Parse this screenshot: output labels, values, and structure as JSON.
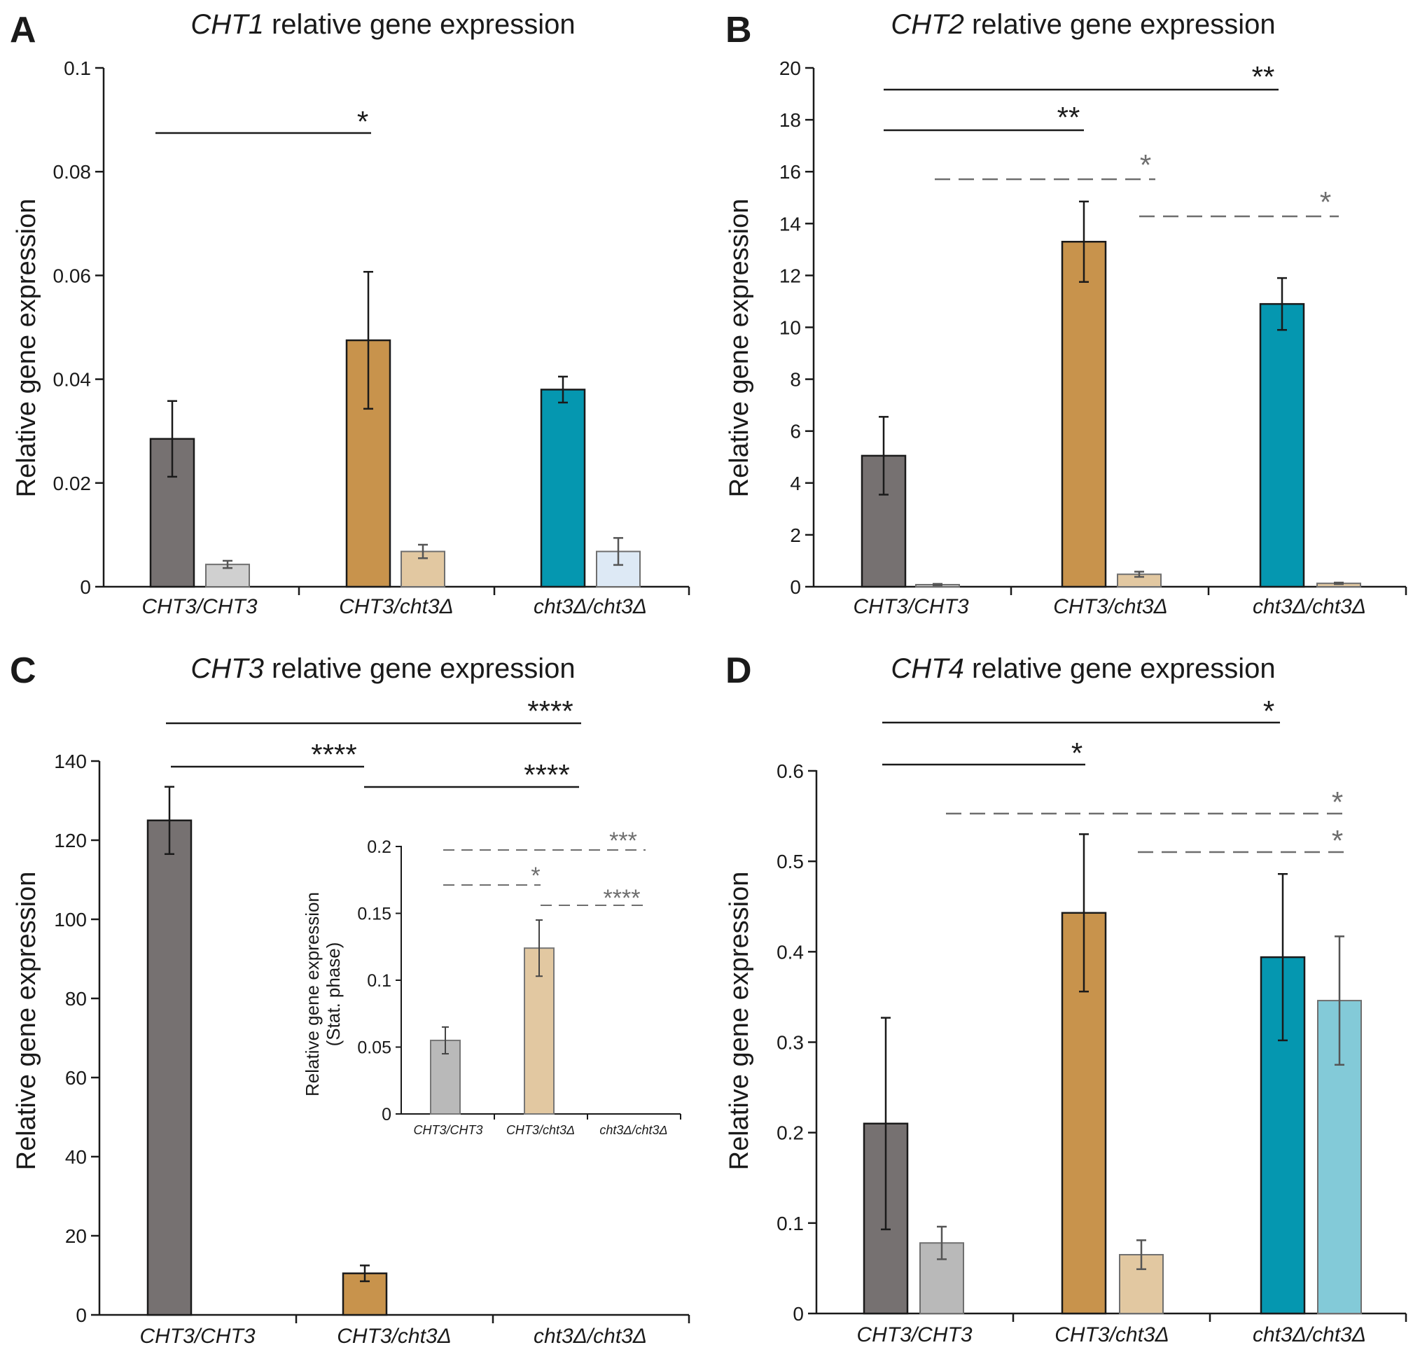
{
  "figure": {
    "panel_letters": [
      "A",
      "B",
      "C",
      "D"
    ],
    "colors": {
      "wt_dark": "#767171",
      "wt_light": "#d0d0d0",
      "wt_light_D": "#b9b9b9",
      "het_dark": "#c8934c",
      "het_light": "#e2c8a1",
      "hom_dark": "#0597b0",
      "hom_light_A": "#dde9f5",
      "hom_light_D": "#83cad8",
      "inset_wt": "#b9b9b9",
      "inset_het": "#e2c8a1"
    }
  },
  "chart_data": [
    {
      "panel": "A",
      "type": "bar",
      "title": "relative gene expression",
      "gene": "CHT1",
      "ylabel": "Relative gene expression",
      "categories": [
        "CHT3/CHT3",
        "CHT3/cht3Δ",
        "cht3Δ/cht3Δ"
      ],
      "ylim": [
        0,
        0.1
      ],
      "yticks": [
        0,
        0.02,
        0.04,
        0.06,
        0.08,
        0.1
      ],
      "ytick_labels": [
        "0",
        "0.02",
        "0.04",
        "0.06",
        "0.08",
        "0.1"
      ],
      "series": [
        {
          "name": "dark",
          "values": [
            0.0285,
            0.0475,
            0.038
          ],
          "errors": [
            0.0073,
            0.0132,
            0.0025
          ]
        },
        {
          "name": "light",
          "values": [
            0.0043,
            0.0068,
            0.0068
          ],
          "errors": [
            0.0007,
            0.0013,
            0.0026
          ]
        }
      ],
      "significance": [
        {
          "label": "*",
          "style": "solid"
        }
      ]
    },
    {
      "panel": "B",
      "type": "bar",
      "title": "relative gene expression",
      "gene": "CHT2",
      "ylabel": "Relative gene expression",
      "categories": [
        "CHT3/CHT3",
        "CHT3/cht3Δ",
        "cht3Δ/cht3Δ"
      ],
      "ylim": [
        0,
        20
      ],
      "yticks": [
        0,
        2,
        4,
        6,
        8,
        10,
        12,
        14,
        16,
        18,
        20
      ],
      "ytick_labels": [
        "0",
        "2",
        "4",
        "6",
        "8",
        "10",
        "12",
        "14",
        "16",
        "18",
        "20"
      ],
      "series": [
        {
          "name": "dark",
          "values": [
            5.05,
            13.3,
            10.9
          ],
          "errors": [
            1.5,
            1.55,
            1.0
          ]
        },
        {
          "name": "light",
          "values": [
            0.08,
            0.48,
            0.13
          ],
          "errors": [
            0.03,
            0.1,
            0.03
          ]
        }
      ],
      "significance": [
        {
          "label": "**",
          "style": "solid"
        },
        {
          "label": "**",
          "style": "solid"
        },
        {
          "label": "*",
          "style": "dashed"
        },
        {
          "label": "*",
          "style": "dashed"
        }
      ]
    },
    {
      "panel": "C",
      "type": "bar",
      "title": "relative gene expression",
      "gene": "CHT3",
      "ylabel": "Relative gene expression",
      "categories": [
        "CHT3/CHT3",
        "CHT3/cht3Δ",
        "cht3Δ/cht3Δ"
      ],
      "ylim": [
        0,
        140
      ],
      "yticks": [
        0,
        20,
        40,
        60,
        80,
        100,
        120,
        140
      ],
      "ytick_labels": [
        "0",
        "20",
        "40",
        "60",
        "80",
        "100",
        "120",
        "140"
      ],
      "series": [
        {
          "name": "dark",
          "values": [
            125,
            10.5,
            0
          ],
          "errors": [
            8.5,
            2.0,
            0
          ]
        },
        {
          "name": "light",
          "values": [
            0,
            0,
            0
          ],
          "errors": [
            0,
            0,
            0
          ]
        }
      ],
      "significance": [
        {
          "label": "****",
          "style": "solid"
        },
        {
          "label": "****",
          "style": "solid"
        },
        {
          "label": "****",
          "style": "solid"
        }
      ],
      "inset": {
        "type": "bar",
        "ylabel": [
          "Relative gene expression",
          "(Stat. phase)"
        ],
        "categories": [
          "CHT3/CHT3",
          "CHT3/cht3Δ",
          "cht3Δ/cht3Δ"
        ],
        "ylim": [
          0,
          0.2
        ],
        "yticks": [
          0,
          0.05,
          0.1,
          0.15,
          0.2
        ],
        "ytick_labels": [
          "0",
          "0.05",
          "0.1",
          "0.15",
          "0.2"
        ],
        "values": [
          0.055,
          0.124,
          0
        ],
        "errors": [
          0.01,
          0.021,
          0
        ],
        "significance": [
          {
            "label": "***",
            "style": "dashed"
          },
          {
            "label": "*",
            "style": "dashed"
          },
          {
            "label": "****",
            "style": "dashed"
          }
        ]
      }
    },
    {
      "panel": "D",
      "type": "bar",
      "title": "relative gene expression",
      "gene": "CHT4",
      "ylabel": "Relative gene expression",
      "categories": [
        "CHT3/CHT3",
        "CHT3/cht3Δ",
        "cht3Δ/cht3Δ"
      ],
      "ylim": [
        0,
        0.6
      ],
      "yticks": [
        0,
        0.1,
        0.2,
        0.3,
        0.4,
        0.5,
        0.6
      ],
      "ytick_labels": [
        "0",
        "0.1",
        "0.2",
        "0.3",
        "0.4",
        "0.5",
        "0.6"
      ],
      "series": [
        {
          "name": "dark",
          "values": [
            0.21,
            0.443,
            0.394
          ],
          "errors": [
            0.117,
            0.087,
            0.092
          ]
        },
        {
          "name": "light",
          "values": [
            0.078,
            0.065,
            0.346
          ],
          "errors": [
            0.018,
            0.016,
            0.071
          ]
        }
      ],
      "significance": [
        {
          "label": "*",
          "style": "solid"
        },
        {
          "label": "*",
          "style": "solid"
        },
        {
          "label": "*",
          "style": "dashed"
        },
        {
          "label": "*",
          "style": "dashed"
        }
      ]
    }
  ]
}
